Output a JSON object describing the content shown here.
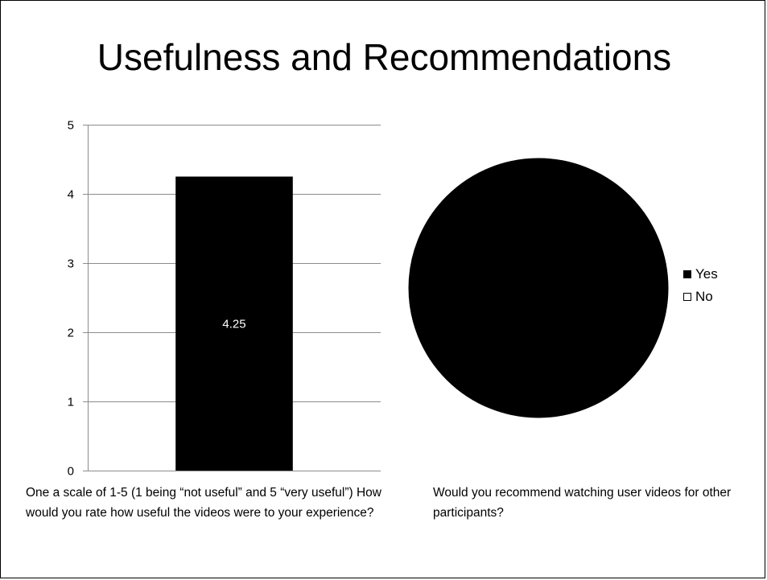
{
  "slide": {
    "title": "Usefulness and Recommendations"
  },
  "chart_data": [
    {
      "type": "bar",
      "title": "",
      "xlabel": "",
      "ylabel": "",
      "categories": [
        ""
      ],
      "values": [
        4.25
      ],
      "data_labels": [
        "4.25"
      ],
      "ylim": [
        0,
        5
      ],
      "yticks": [
        "0",
        "1",
        "2",
        "3",
        "4",
        "5"
      ],
      "grid": true,
      "bar_color": "#000000",
      "caption": "One a scale of 1-5 (1 being “not useful” and 5 “very useful”)  How would you rate how useful the videos were to your experience?"
    },
    {
      "type": "pie",
      "title": "",
      "categories": [
        "Yes",
        "No"
      ],
      "values": [
        100,
        0
      ],
      "colors": [
        "#000000",
        "#ffffff"
      ],
      "legend_position": "right",
      "caption": "Would you recommend watching user videos for other participants?"
    }
  ]
}
